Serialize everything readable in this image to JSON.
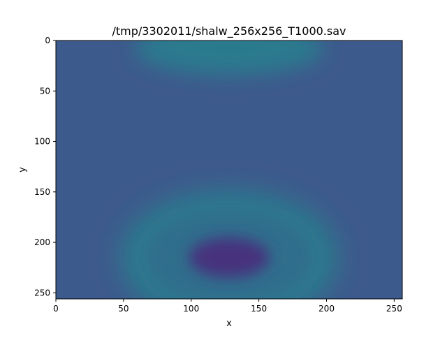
{
  "chart_data": {
    "type": "heatmap",
    "title": "/tmp/3302011/shalw_256x256_T1000.sav",
    "xlabel": "x",
    "ylabel": "y",
    "xlim": [
      0,
      256
    ],
    "ylim": [
      256,
      0
    ],
    "y_inverted": true,
    "grid": false,
    "colormap": "viridis",
    "x_ticks": [
      0,
      50,
      100,
      150,
      200,
      250
    ],
    "y_ticks": [
      0,
      50,
      100,
      150,
      200,
      250
    ],
    "x_tick_labels": [
      "0",
      "50",
      "100",
      "150",
      "200",
      "250"
    ],
    "y_tick_labels": [
      "0",
      "50",
      "100",
      "150",
      "200",
      "250"
    ],
    "field_features": [
      {
        "kind": "trough",
        "cx": 128,
        "cy": 215,
        "rx": 30,
        "ry": 20,
        "color": "#46307e"
      },
      {
        "kind": "ring",
        "cx": 128,
        "cy": 215,
        "rx": 68,
        "ry": 50,
        "color": "#2b7b8e"
      },
      {
        "kind": "ridge",
        "cx": 128,
        "cy": 8,
        "rx": 70,
        "ry": 26,
        "color": "#2a7a8e"
      }
    ],
    "background_color": "#3d5a8c"
  }
}
